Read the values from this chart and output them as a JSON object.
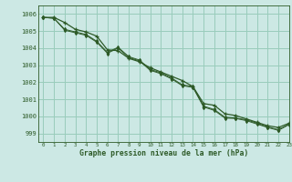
{
  "title": "Graphe pression niveau de la mer (hPa)",
  "background_color": "#cce8e4",
  "grid_color": "#99ccbb",
  "line_color": "#2d5a27",
  "xlim": [
    -0.5,
    23
  ],
  "ylim": [
    998.5,
    1006.5
  ],
  "yticks": [
    999,
    1000,
    1001,
    1002,
    1003,
    1004,
    1005,
    1006
  ],
  "xticks": [
    0,
    1,
    2,
    3,
    4,
    5,
    6,
    7,
    8,
    9,
    10,
    11,
    12,
    13,
    14,
    15,
    16,
    17,
    18,
    19,
    20,
    21,
    22,
    23
  ],
  "series": [
    [
      1005.8,
      1005.8,
      1005.5,
      1005.1,
      1004.95,
      1004.7,
      1003.9,
      1003.85,
      1003.4,
      1003.2,
      1002.85,
      1002.6,
      1002.35,
      1002.1,
      1001.75,
      1000.75,
      1000.65,
      1000.15,
      1000.05,
      999.85,
      999.65,
      999.45,
      999.35,
      999.6
    ],
    [
      1005.8,
      1005.75,
      1005.1,
      1004.95,
      1004.8,
      1004.4,
      1003.75,
      1004.05,
      1003.5,
      1003.3,
      1002.75,
      1002.55,
      1002.25,
      1001.85,
      1001.75,
      1000.6,
      1000.4,
      999.95,
      999.9,
      999.8,
      999.6,
      999.38,
      999.22,
      999.55
    ],
    [
      1005.8,
      1005.75,
      1005.05,
      1004.9,
      1004.75,
      1004.35,
      1003.7,
      1004.0,
      1003.45,
      1003.25,
      1002.7,
      1002.5,
      1002.2,
      1001.8,
      1001.7,
      1000.55,
      1000.35,
      999.9,
      999.88,
      999.75,
      999.55,
      999.35,
      999.18,
      999.52
    ]
  ]
}
